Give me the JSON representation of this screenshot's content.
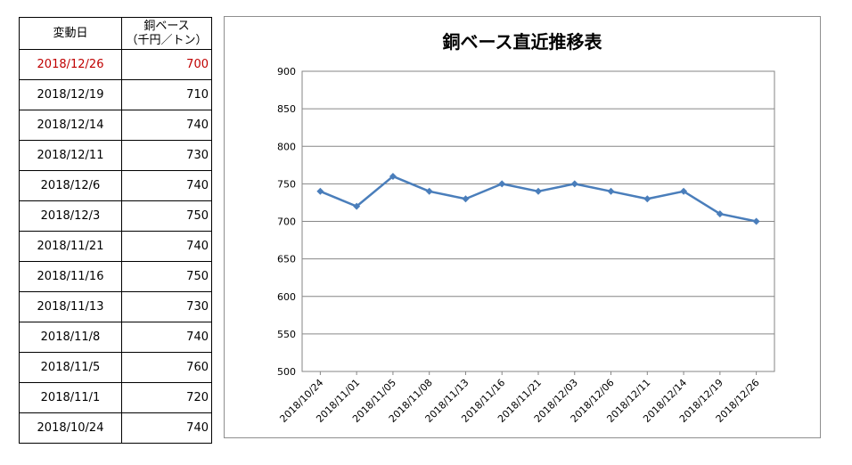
{
  "table": {
    "header_date": "変動日",
    "header_price_line1": "銅ベース",
    "header_price_line2": "（千円／トン）",
    "rows": [
      {
        "date": "2018/12/26",
        "price": "700"
      },
      {
        "date": "2018/12/19",
        "price": "710"
      },
      {
        "date": "2018/12/14",
        "price": "740"
      },
      {
        "date": "2018/12/11",
        "price": "730"
      },
      {
        "date": "2018/12/6",
        "price": "740"
      },
      {
        "date": "2018/12/3",
        "price": "750"
      },
      {
        "date": "2018/11/21",
        "price": "740"
      },
      {
        "date": "2018/11/16",
        "price": "750"
      },
      {
        "date": "2018/11/13",
        "price": "730"
      },
      {
        "date": "2018/11/8",
        "price": "740"
      },
      {
        "date": "2018/11/5",
        "price": "760"
      },
      {
        "date": "2018/11/1",
        "price": "720"
      },
      {
        "date": "2018/10/24",
        "price": "740"
      }
    ],
    "highlight_color": "#c00000"
  },
  "chart_data": {
    "type": "line",
    "title": "銅ベース直近推移表",
    "categories": [
      "2018/10/24",
      "2018/11/01",
      "2018/11/05",
      "2018/11/08",
      "2018/11/13",
      "2018/11/16",
      "2018/11/21",
      "2018/12/03",
      "2018/12/06",
      "2018/12/11",
      "2018/12/14",
      "2018/12/19",
      "2018/12/26"
    ],
    "series": [
      {
        "values": [
          740,
          720,
          760,
          740,
          730,
          750,
          740,
          750,
          740,
          730,
          740,
          710,
          700
        ],
        "color": "#4a7ebb",
        "marker": "diamond"
      }
    ],
    "ylim": [
      500,
      900
    ],
    "yticks": [
      500,
      550,
      600,
      650,
      700,
      750,
      800,
      850,
      900
    ],
    "grid": true,
    "legend": "none"
  }
}
